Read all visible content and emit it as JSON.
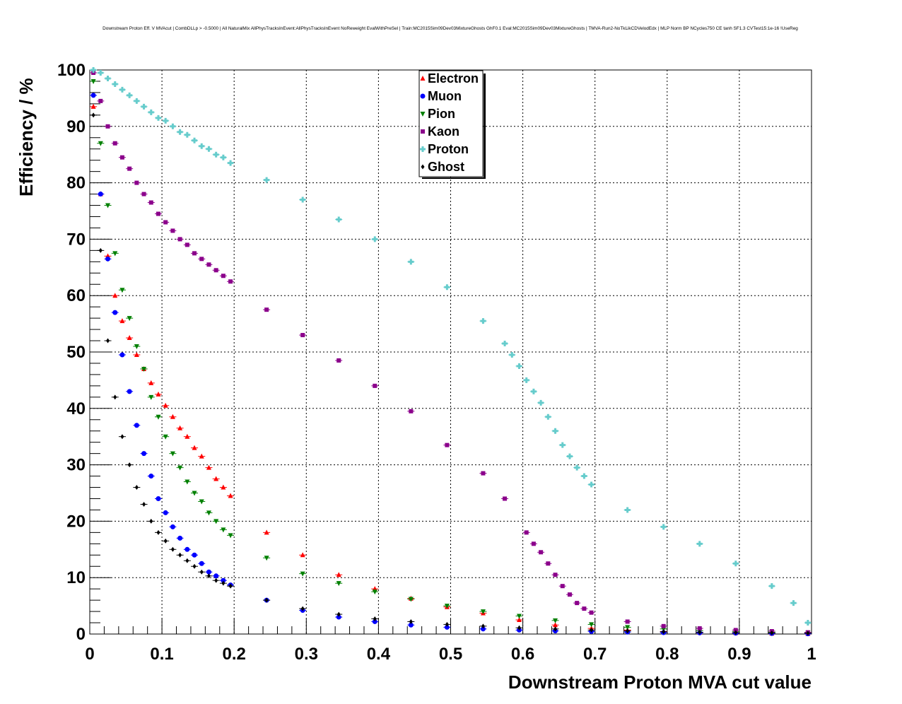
{
  "chart_data": {
    "type": "scatter",
    "title": "Downstream Proton Eff. V MVAcut | CombDLLp > -0.5000 | All NaturalMix AllPhysTracksInEvent:AllPhysTracksInEvent NoReweight EvalWithPreSel | Train:MC2015Sim09Dev03MixtureGhosts GhF0.1 Eval:MC2015Sim09Dev03MixtureGhosts | TMVA-Run2-NoTkLikCDVelodEdx | MLP Norm BP NCycles750 CE tanh SF1.3 CVTest15:1e-16 !UseReg",
    "xlabel": "Downstream Proton MVA cut value",
    "ylabel": "Efficiency / %",
    "xlim": [
      0,
      1
    ],
    "ylim": [
      0,
      100
    ],
    "x_ticks": [
      "0",
      "0.1",
      "0.2",
      "0.3",
      "0.4",
      "0.5",
      "0.6",
      "0.7",
      "0.8",
      "0.9",
      "1"
    ],
    "y_ticks": [
      "0",
      "10",
      "20",
      "30",
      "40",
      "50",
      "60",
      "70",
      "80",
      "90",
      "100"
    ],
    "grid": true,
    "legend_position": "top-center",
    "series": [
      {
        "name": "Electron",
        "color": "#ff0000",
        "marker": "triangle-up",
        "x": [
          0.005,
          0.015,
          0.025,
          0.035,
          0.045,
          0.055,
          0.065,
          0.075,
          0.085,
          0.095,
          0.105,
          0.115,
          0.125,
          0.135,
          0.145,
          0.155,
          0.165,
          0.175,
          0.185,
          0.195,
          0.245,
          0.295,
          0.345,
          0.395,
          0.445,
          0.495,
          0.545,
          0.595,
          0.645,
          0.695,
          0.745,
          0.795,
          0.845,
          0.895,
          0.945,
          0.995
        ],
        "y": [
          93.5,
          78.0,
          67.0,
          60.0,
          55.5,
          52.5,
          49.5,
          47.0,
          44.5,
          42.5,
          40.5,
          38.5,
          36.5,
          35.0,
          33.0,
          31.5,
          29.5,
          27.5,
          26.0,
          24.5,
          18.0,
          14.0,
          10.5,
          8.0,
          6.3,
          4.8,
          3.7,
          2.5,
          1.6,
          1.0,
          0.7,
          0.45,
          0.3,
          0.2,
          0.1,
          0.05
        ]
      },
      {
        "name": "Muon",
        "color": "#0000ff",
        "marker": "circle",
        "x": [
          0.005,
          0.015,
          0.025,
          0.035,
          0.045,
          0.055,
          0.065,
          0.075,
          0.085,
          0.095,
          0.105,
          0.115,
          0.125,
          0.135,
          0.145,
          0.155,
          0.165,
          0.175,
          0.185,
          0.195,
          0.245,
          0.295,
          0.345,
          0.395,
          0.445,
          0.495,
          0.545,
          0.595,
          0.645,
          0.695,
          0.745,
          0.795,
          0.845,
          0.895,
          0.945,
          0.995
        ],
        "y": [
          95.5,
          78.0,
          66.5,
          57.0,
          49.5,
          43.0,
          37.0,
          32.0,
          28.0,
          24.0,
          21.5,
          19.0,
          17.0,
          15.0,
          14.0,
          12.5,
          11.0,
          10.3,
          9.5,
          8.7,
          6.0,
          4.2,
          3.0,
          2.2,
          1.6,
          1.2,
          0.9,
          0.7,
          0.55,
          0.45,
          0.35,
          0.25,
          0.2,
          0.15,
          0.1,
          0.05
        ]
      },
      {
        "name": "Pion",
        "color": "#008000",
        "marker": "triangle-down",
        "x": [
          0.005,
          0.015,
          0.025,
          0.035,
          0.045,
          0.055,
          0.065,
          0.075,
          0.085,
          0.095,
          0.105,
          0.115,
          0.125,
          0.135,
          0.145,
          0.155,
          0.165,
          0.175,
          0.185,
          0.195,
          0.245,
          0.295,
          0.345,
          0.395,
          0.445,
          0.495,
          0.545,
          0.595,
          0.645,
          0.695,
          0.745,
          0.795,
          0.845,
          0.895,
          0.945,
          0.995
        ],
        "y": [
          98.0,
          87.0,
          76.0,
          67.5,
          61.0,
          56.0,
          51.0,
          47.0,
          42.0,
          38.5,
          35.0,
          32.0,
          29.5,
          27.0,
          25.0,
          23.5,
          21.5,
          20.0,
          18.5,
          17.5,
          13.5,
          10.7,
          9.0,
          7.5,
          6.2,
          5.0,
          4.0,
          3.2,
          2.4,
          1.7,
          1.2,
          0.9,
          0.6,
          0.45,
          0.3,
          0.2
        ]
      },
      {
        "name": "Kaon",
        "color": "#8b008b",
        "marker": "square",
        "x": [
          0.005,
          0.015,
          0.025,
          0.035,
          0.045,
          0.055,
          0.065,
          0.075,
          0.085,
          0.095,
          0.105,
          0.115,
          0.125,
          0.135,
          0.145,
          0.155,
          0.165,
          0.175,
          0.185,
          0.195,
          0.245,
          0.295,
          0.345,
          0.395,
          0.445,
          0.495,
          0.545,
          0.575,
          0.605,
          0.615,
          0.625,
          0.635,
          0.645,
          0.655,
          0.665,
          0.675,
          0.685,
          0.695,
          0.745,
          0.795,
          0.845,
          0.895,
          0.945,
          0.995
        ],
        "y": [
          99.5,
          94.5,
          90.0,
          87.0,
          84.5,
          82.5,
          80.0,
          78.0,
          76.5,
          74.5,
          73.0,
          71.5,
          70.0,
          69.0,
          67.5,
          66.5,
          65.5,
          64.5,
          63.5,
          62.5,
          57.5,
          53.0,
          48.5,
          44.0,
          39.5,
          33.5,
          28.5,
          24.0,
          18.0,
          16.0,
          14.5,
          12.5,
          10.5,
          8.5,
          7.0,
          5.5,
          4.5,
          3.8,
          2.2,
          1.4,
          1.0,
          0.7,
          0.5,
          0.3
        ]
      },
      {
        "name": "Proton",
        "color": "#66cccc",
        "marker": "cross",
        "x": [
          0.005,
          0.015,
          0.025,
          0.035,
          0.045,
          0.055,
          0.065,
          0.075,
          0.085,
          0.095,
          0.105,
          0.115,
          0.125,
          0.135,
          0.145,
          0.155,
          0.165,
          0.175,
          0.185,
          0.195,
          0.245,
          0.295,
          0.345,
          0.395,
          0.445,
          0.495,
          0.545,
          0.575,
          0.585,
          0.595,
          0.605,
          0.615,
          0.625,
          0.635,
          0.645,
          0.655,
          0.665,
          0.675,
          0.685,
          0.695,
          0.745,
          0.795,
          0.845,
          0.895,
          0.945,
          0.975,
          0.995
        ],
        "y": [
          100.0,
          99.5,
          98.5,
          97.5,
          96.5,
          95.5,
          94.5,
          93.5,
          92.5,
          91.5,
          91.0,
          90.0,
          89.0,
          88.5,
          87.5,
          86.5,
          86.0,
          85.0,
          84.5,
          83.5,
          80.5,
          77.0,
          73.5,
          70.0,
          66.0,
          61.5,
          55.5,
          51.5,
          49.5,
          47.5,
          45.0,
          43.0,
          41.0,
          38.5,
          36.0,
          33.5,
          31.5,
          29.5,
          28.0,
          26.5,
          22.0,
          19.0,
          16.0,
          12.5,
          8.5,
          5.5,
          2.0
        ]
      },
      {
        "name": "Ghost",
        "color": "#000000",
        "marker": "diamond",
        "x": [
          0.005,
          0.015,
          0.025,
          0.035,
          0.045,
          0.055,
          0.065,
          0.075,
          0.085,
          0.095,
          0.105,
          0.115,
          0.125,
          0.135,
          0.145,
          0.155,
          0.165,
          0.175,
          0.185,
          0.195,
          0.245,
          0.295,
          0.345,
          0.395,
          0.445,
          0.495,
          0.545,
          0.595,
          0.645,
          0.695,
          0.745,
          0.795,
          0.845,
          0.895,
          0.945,
          0.995
        ],
        "y": [
          92.0,
          68.0,
          52.0,
          42.0,
          35.0,
          30.0,
          26.0,
          23.0,
          20.0,
          18.0,
          16.5,
          15.0,
          14.0,
          13.0,
          12.0,
          11.0,
          10.3,
          9.5,
          9.0,
          8.5,
          6.0,
          4.5,
          3.5,
          2.7,
          2.2,
          1.7,
          1.4,
          1.1,
          0.9,
          0.7,
          0.55,
          0.4,
          0.3,
          0.25,
          0.2,
          0.15
        ]
      }
    ]
  }
}
